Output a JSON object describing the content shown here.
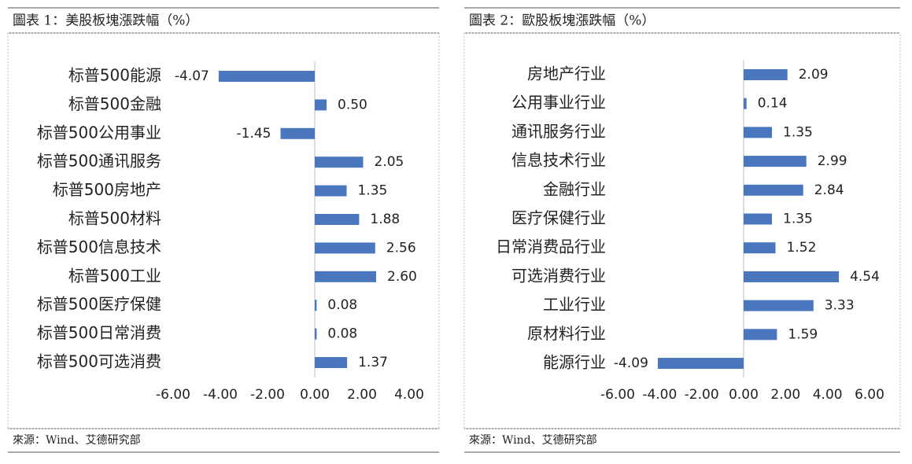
{
  "chart_data": [
    {
      "type": "bar",
      "orientation": "horizontal",
      "title": "圖表 1：美股板塊漲跌幅（%）",
      "source": "來源：Wind、艾德研究部",
      "categories": [
        "标普500能源",
        "标普500金融",
        "标普500公用事业",
        "标普500通讯服务",
        "标普500房地产",
        "标普500材料",
        "标普500信息技术",
        "标普500工业",
        "标普500医疗保健",
        "标普500日常消费",
        "标普500可选消费"
      ],
      "values": [
        -4.07,
        0.5,
        -1.45,
        2.05,
        1.35,
        1.88,
        2.56,
        2.6,
        0.08,
        0.08,
        1.37
      ],
      "value_labels": [
        "-4.07",
        "0.50",
        "-1.45",
        "2.05",
        "1.35",
        "1.88",
        "2.56",
        "2.60",
        "0.08",
        "0.08",
        "1.37"
      ],
      "color": "#4a76be",
      "xlim": [
        -6,
        4
      ],
      "xticks": [
        {
          "value": -6,
          "label": "-6.00"
        },
        {
          "value": -4,
          "label": "-4.00"
        },
        {
          "value": -2,
          "label": "-2.00"
        },
        {
          "value": 0,
          "label": "0.00"
        },
        {
          "value": 2,
          "label": "2.00"
        },
        {
          "value": 4,
          "label": "4.00"
        }
      ]
    },
    {
      "type": "bar",
      "orientation": "horizontal",
      "title": "圖表 2：歐股板塊漲跌幅（%）",
      "source": "來源：Wind、艾德研究部",
      "categories": [
        "房地产行业",
        "公用事业行业",
        "通讯服务行业",
        "信息技术行业",
        "金融行业",
        "医疗保健行业",
        "日常消费品行业",
        "可选消费行业",
        "工业行业",
        "原材料行业",
        "能源行业"
      ],
      "values": [
        2.09,
        0.14,
        1.35,
        2.99,
        2.84,
        1.35,
        1.52,
        4.54,
        3.33,
        1.59,
        -4.09
      ],
      "value_labels": [
        "2.09",
        "0.14",
        "1.35",
        "2.99",
        "2.84",
        "1.35",
        "1.52",
        "4.54",
        "3.33",
        "1.59",
        "-4.09"
      ],
      "color": "#4a76be",
      "xlim": [
        -6,
        6
      ],
      "xticks": [
        {
          "value": -6,
          "label": "-6.00"
        },
        {
          "value": -4,
          "label": "-4.00"
        },
        {
          "value": -2,
          "label": "-2.00"
        },
        {
          "value": 0,
          "label": "0.00"
        },
        {
          "value": 2,
          "label": "2.00"
        },
        {
          "value": 4,
          "label": "4.00"
        },
        {
          "value": 6,
          "label": "6.00"
        }
      ]
    }
  ]
}
